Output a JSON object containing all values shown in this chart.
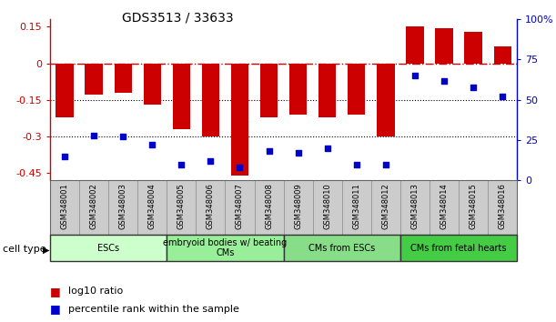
{
  "title": "GDS3513 / 33633",
  "samples": [
    "GSM348001",
    "GSM348002",
    "GSM348003",
    "GSM348004",
    "GSM348005",
    "GSM348006",
    "GSM348007",
    "GSM348008",
    "GSM348009",
    "GSM348010",
    "GSM348011",
    "GSM348012",
    "GSM348013",
    "GSM348014",
    "GSM348015",
    "GSM348016"
  ],
  "log10_ratio": [
    -0.22,
    -0.13,
    -0.12,
    -0.17,
    -0.27,
    -0.3,
    -0.46,
    -0.22,
    -0.21,
    -0.22,
    -0.21,
    -0.3,
    0.15,
    0.145,
    0.13,
    0.07
  ],
  "percentile_rank": [
    15,
    28,
    27,
    22,
    10,
    12,
    8,
    18,
    17,
    20,
    10,
    10,
    65,
    62,
    58,
    52
  ],
  "bar_color": "#cc0000",
  "dot_color": "#0000cc",
  "hline_color": "#cc0000",
  "dotted_line_color": "#000000",
  "ylim_left": [
    -0.48,
    0.18
  ],
  "ylim_right": [
    0,
    100
  ],
  "yticks_left": [
    0.15,
    0.0,
    -0.15,
    -0.3,
    -0.45
  ],
  "yticks_right": [
    100,
    75,
    50,
    25,
    0
  ],
  "ytick_labels_left": [
    "0.15",
    "0",
    "-0.15",
    "-0.3",
    "-0.45"
  ],
  "ytick_labels_right": [
    "100%",
    "75",
    "50",
    "25",
    "0"
  ],
  "hline_y": 0.0,
  "dotted_hlines": [
    -0.15,
    -0.3
  ],
  "cell_type_groups": [
    {
      "label": "ESCs",
      "start": 0,
      "end": 3,
      "color": "#ccffcc"
    },
    {
      "label": "embryoid bodies w/ beating\nCMs",
      "start": 4,
      "end": 7,
      "color": "#99ee99"
    },
    {
      "label": "CMs from ESCs",
      "start": 8,
      "end": 11,
      "color": "#88dd88"
    },
    {
      "label": "CMs from fetal hearts",
      "start": 12,
      "end": 15,
      "color": "#44cc44"
    }
  ],
  "cell_type_label": "cell type",
  "legend_red_label": "log10 ratio",
  "legend_blue_label": "percentile rank within the sample",
  "bg_color": "#ffffff",
  "tick_area_bg": "#cccccc"
}
